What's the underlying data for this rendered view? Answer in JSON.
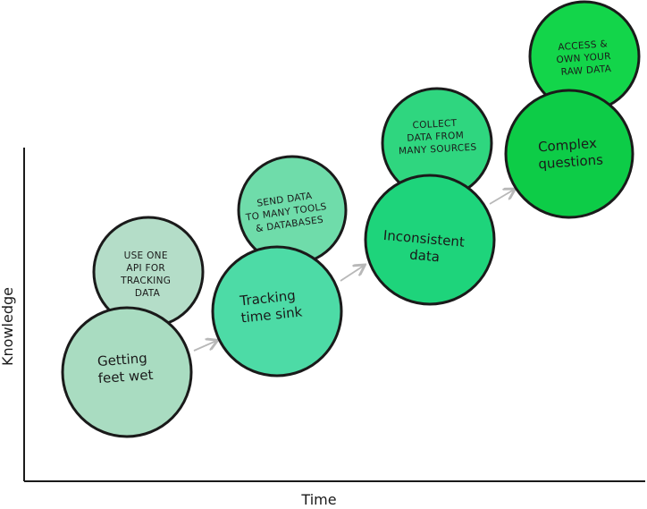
{
  "axes": {
    "x_label": "Time",
    "y_label": "Knowledge"
  },
  "colors": {
    "ink": "#1a1a1a",
    "arrow": "#b8b8b8",
    "stage1_bottom": "#a9dcc1",
    "stage1_top": "#b4ddc8",
    "stage2_bottom": "#4ddba6",
    "stage2_top": "#6fdcaa",
    "stage3_bottom": "#1ed47b",
    "stage3_top": "#2fd67f",
    "stage4_bottom": "#0dcc47",
    "stage4_top": "#13d54a"
  },
  "stages": [
    {
      "label_lines": [
        "Getting",
        "feet wet"
      ],
      "detail_lines": [
        "USE ONE",
        "API FOR",
        "TRACKING",
        "DATA"
      ]
    },
    {
      "label_lines": [
        "Tracking",
        "time sink"
      ],
      "detail_lines": [
        "SEND DATA",
        "TO MANY TOOLS",
        "& DATABASES"
      ]
    },
    {
      "label_lines": [
        "Inconsistent",
        "data"
      ],
      "detail_lines": [
        "COLLECT",
        "DATA FROM",
        "MANY SOURCES"
      ]
    },
    {
      "label_lines": [
        "Complex",
        "questions"
      ],
      "detail_lines": [
        "ACCESS &",
        "OWN YOUR",
        "RAW DATA"
      ]
    }
  ]
}
